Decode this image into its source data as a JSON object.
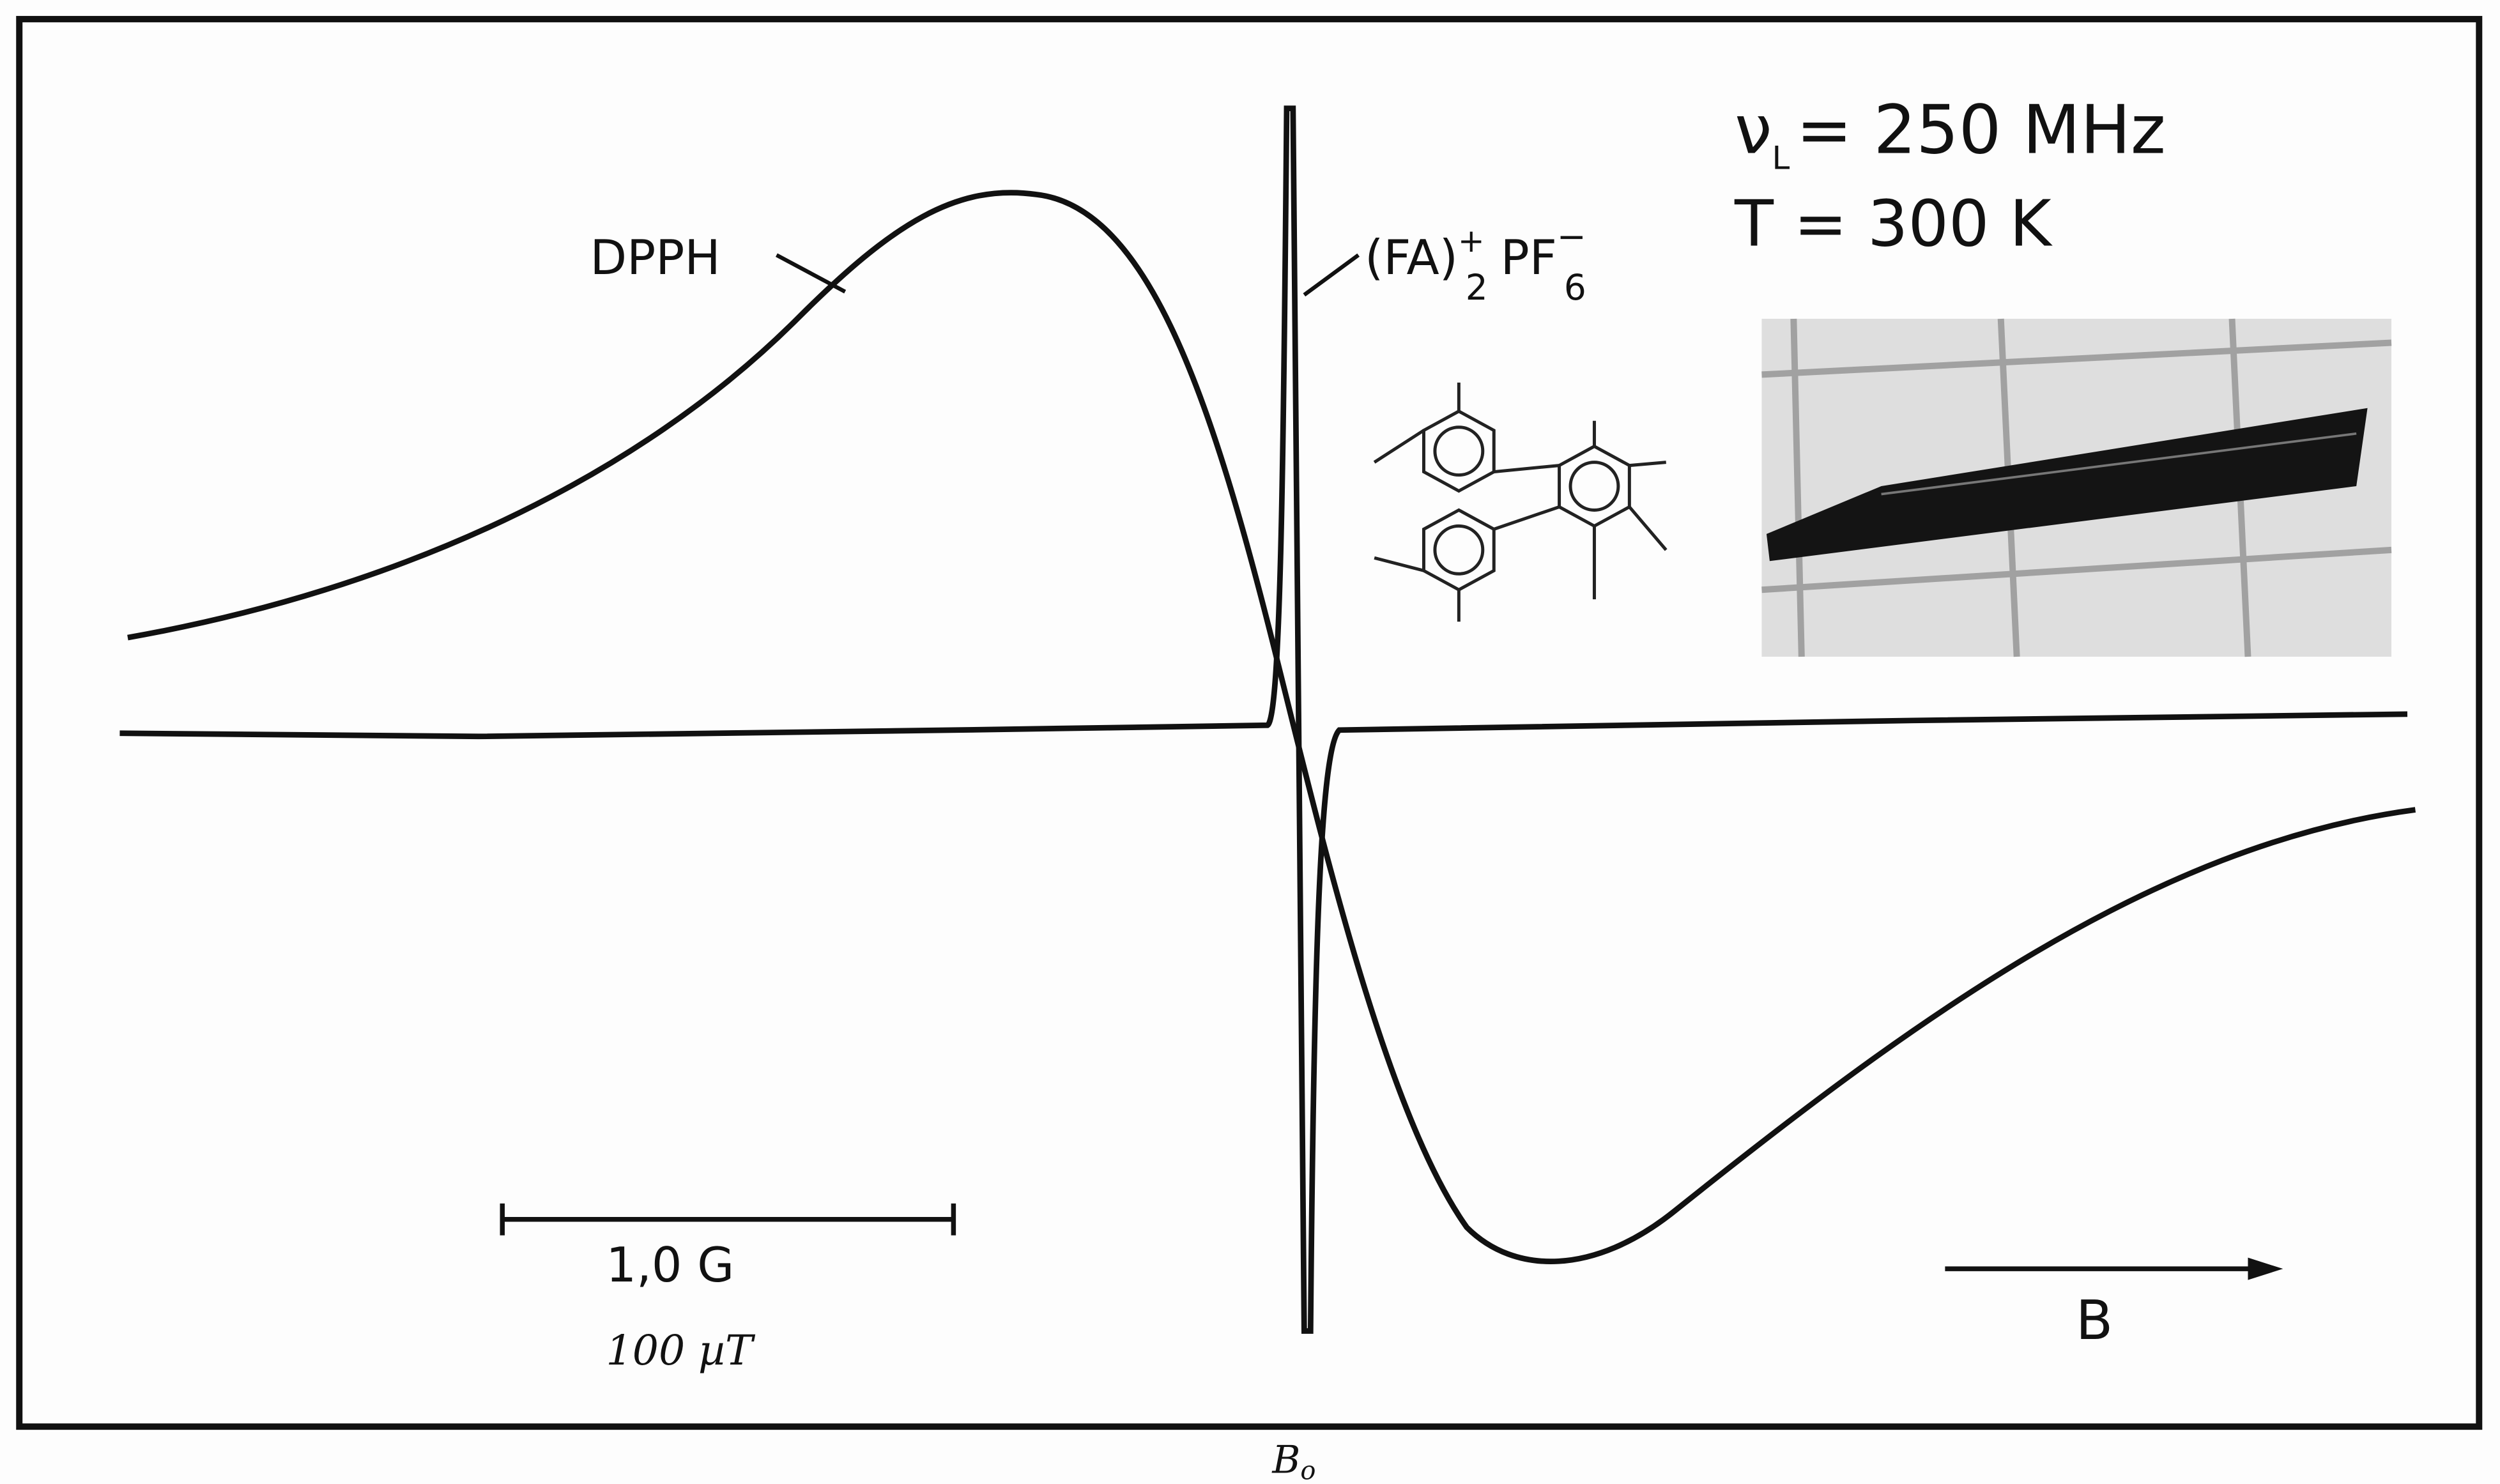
{
  "figure": {
    "dpph_label": "DPPH",
    "fa_label": {
      "base": "(FA)",
      "sup": "+",
      "sub": "2",
      "anion": "PF",
      "anion_sub": "6",
      "anion_sup": "−"
    },
    "frequency": {
      "symbol": "ν",
      "sub": "L",
      "text": "= 250 MHz"
    },
    "temperature": "T = 300 K",
    "scale_gauss": "1,0 G",
    "scale_tesla": "100 µT",
    "field_arrow": "B",
    "field_center": {
      "symbol": "B",
      "sub": "o"
    }
  }
}
